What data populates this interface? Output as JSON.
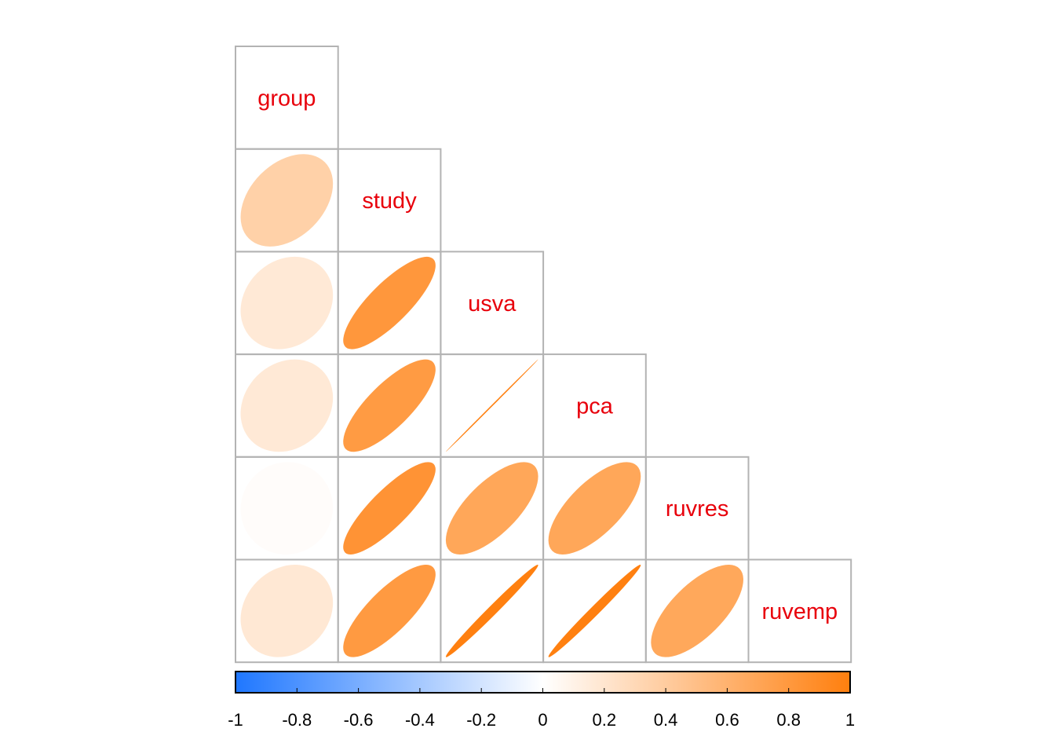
{
  "chart_data": {
    "type": "heatmap",
    "subtype": "correlation-ellipse-lower-triangle",
    "variables": [
      "group",
      "study",
      "usva",
      "pca",
      "ruvres",
      "ruvemp"
    ],
    "correlations": [
      [
        1.0,
        0.36,
        0.17,
        0.17,
        0.02,
        0.18
      ],
      [
        0.36,
        1.0,
        0.81,
        0.78,
        0.84,
        0.79
      ],
      [
        0.17,
        0.81,
        1.0,
        1.0,
        0.69,
        0.99
      ],
      [
        0.17,
        0.78,
        1.0,
        1.0,
        0.69,
        0.99
      ],
      [
        0.02,
        0.84,
        0.69,
        0.69,
        1.0,
        0.68
      ],
      [
        0.18,
        0.79,
        0.99,
        0.99,
        0.68,
        1.0
      ]
    ],
    "colorbar": {
      "range": [
        -1,
        1
      ],
      "tick_labels": [
        "-1",
        "-0.8",
        "-0.6",
        "-0.4",
        "-0.2",
        "0",
        "0.2",
        "0.4",
        "0.6",
        "0.8",
        "1"
      ],
      "colors": {
        "negative": "#1f77ff",
        "zero": "#ffffff",
        "positive": "#ff7f0e"
      }
    },
    "label_color": "#e8000b",
    "grid_color": "#b3b3b3"
  }
}
